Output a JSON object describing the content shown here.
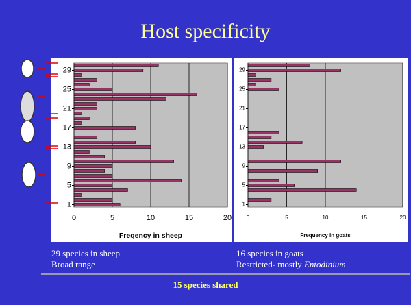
{
  "title": "Host specificity",
  "chart_data": [
    {
      "type": "barh",
      "categories": [
        "1",
        null,
        null,
        null,
        "5",
        null,
        null,
        null,
        "9",
        null,
        null,
        null,
        "13",
        null,
        null,
        null,
        "17",
        null,
        null,
        null,
        "21",
        null,
        null,
        null,
        "25",
        null,
        null,
        null,
        "29",
        null
      ],
      "values": [
        6,
        5,
        1,
        7,
        5,
        14,
        5,
        4,
        5,
        13,
        4,
        2,
        10,
        8,
        3,
        0,
        8,
        1,
        2,
        1,
        3,
        3,
        12,
        16,
        5,
        2,
        3,
        1,
        9,
        11
      ],
      "color": "#993366",
      "xlim": [
        0,
        20
      ],
      "xticks": [
        0,
        5,
        10,
        15,
        20
      ],
      "xlabel": "Freqency in sheep",
      "grid": true,
      "background": "#c0c0c0"
    },
    {
      "type": "barh",
      "categories": [
        "1",
        null,
        null,
        null,
        "5",
        null,
        null,
        null,
        "9",
        null,
        null,
        null,
        "13",
        null,
        null,
        null,
        "17",
        null,
        null,
        null,
        "21",
        null,
        null,
        null,
        "25",
        null,
        null,
        null,
        "29",
        null
      ],
      "values": [
        0,
        3,
        0,
        14,
        6,
        4,
        0,
        9,
        0,
        12,
        0,
        0,
        2,
        7,
        3,
        4,
        0,
        0,
        0,
        0,
        0,
        0,
        0,
        0,
        4,
        1,
        3,
        1,
        12,
        8
      ],
      "color": "#993366",
      "xlim": [
        0,
        20
      ],
      "xticks": [
        0,
        5,
        10,
        15,
        20
      ],
      "xlabel": "Frequency in goats",
      "grid": true,
      "background": "#c0c0c0"
    }
  ],
  "captions": {
    "left": [
      "29 species in sheep",
      "Broad range"
    ],
    "right": [
      "16 species in goats",
      "Restricted- mostly ",
      "Entodinium"
    ],
    "shared": "15 species shared"
  }
}
